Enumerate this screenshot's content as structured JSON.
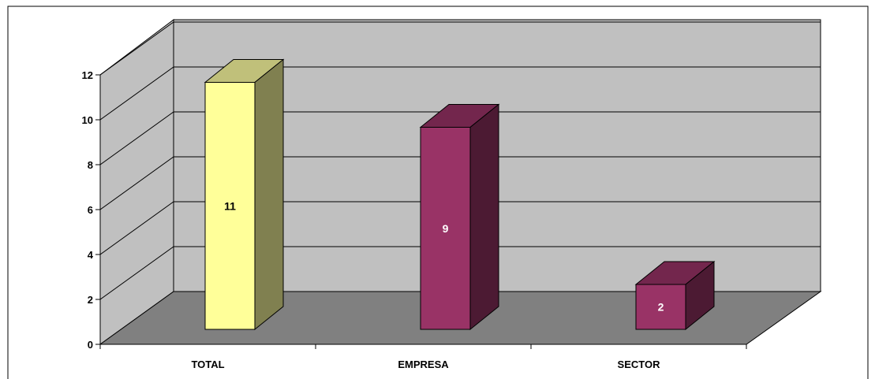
{
  "chart_data": {
    "type": "bar",
    "categories": [
      "TOTAL",
      "EMPRESA",
      "SECTOR"
    ],
    "values": [
      11,
      9,
      2
    ],
    "data_labels": [
      "11",
      "9",
      "2"
    ],
    "ylim": [
      0,
      12
    ],
    "yticks": [
      0,
      2,
      4,
      6,
      8,
      10,
      12
    ],
    "ytick_labels": [
      "0",
      "2",
      "4",
      "6",
      "8",
      "10",
      "12"
    ],
    "title": "",
    "xlabel": "",
    "ylabel": "",
    "grid": true,
    "three_d": true,
    "bar_colors": [
      {
        "front": "#FFFF99",
        "side": "#808050",
        "top": "#C0C07A",
        "label": "#000000"
      },
      {
        "front": "#993366",
        "side": "#4C1A33",
        "top": "#73264D",
        "label": "#FFFFFF"
      },
      {
        "front": "#993366",
        "side": "#4C1A33",
        "top": "#73264D",
        "label": "#FFFFFF"
      }
    ],
    "wall_color": "#C0C0C0",
    "floor_color": "#808080"
  }
}
